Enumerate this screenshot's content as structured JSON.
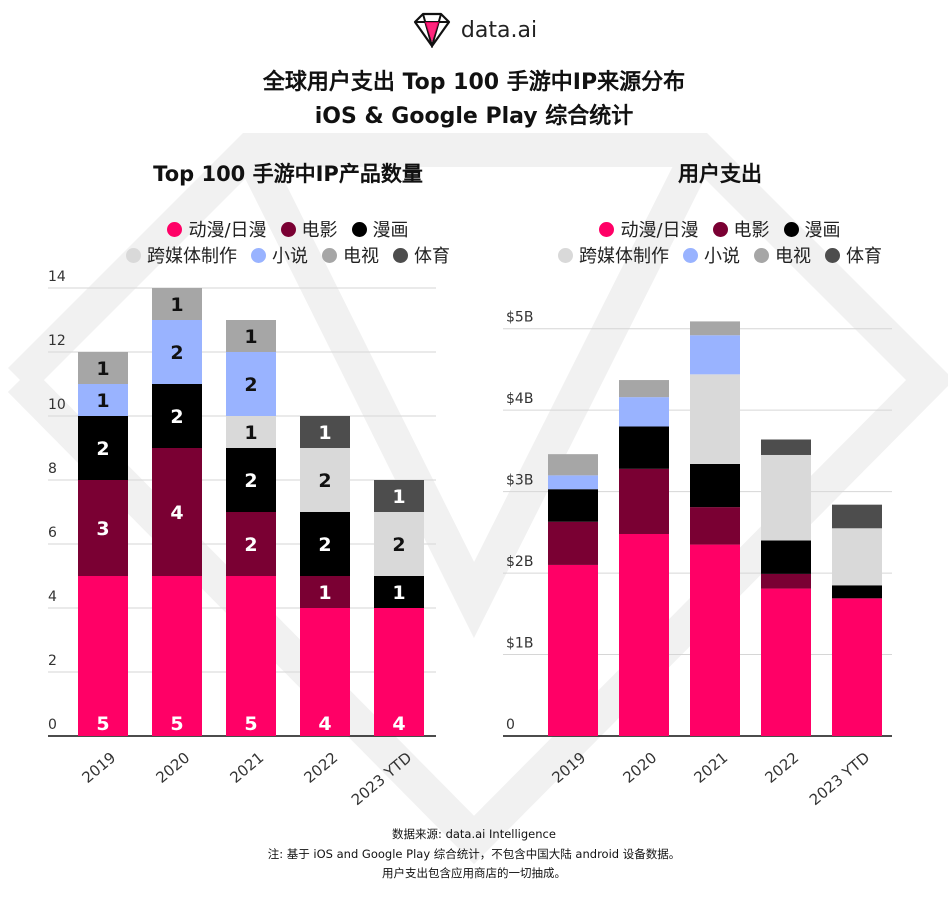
{
  "brand": {
    "name": "data.ai"
  },
  "title": {
    "line1": "全球用户支出 Top 100 手游中IP来源分布",
    "line2": "iOS & Google Play 综合统计"
  },
  "colors": {
    "anime": "#ff0066",
    "movie": "#7a0033",
    "comic": "#000000",
    "crossmedia": "#d9d9d9",
    "novel": "#99b3ff",
    "tv": "#a6a6a6",
    "sports": "#4d4d4d"
  },
  "legend": [
    {
      "label": "动漫/日漫",
      "color": "#ff0066"
    },
    {
      "label": "电影",
      "color": "#7a0033"
    },
    {
      "label": "漫画",
      "color": "#000000"
    },
    {
      "label": "跨媒体制作",
      "color": "#d9d9d9"
    },
    {
      "label": "小说",
      "color": "#99b3ff"
    },
    {
      "label": "电视",
      "color": "#a6a6a6"
    },
    {
      "label": "体育",
      "color": "#4d4d4d"
    }
  ],
  "chart_data": [
    {
      "type": "bar",
      "stacked": true,
      "title": "Top 100 手游中IP产品数量",
      "categories": [
        "2019",
        "2020",
        "2021",
        "2022",
        "2023 YTD"
      ],
      "ylim": [
        0,
        14
      ],
      "yticks": [
        "0",
        "2",
        "4",
        "6",
        "8",
        "10",
        "12",
        "14"
      ],
      "grid": true,
      "legend_position": "top",
      "series": [
        {
          "name": "动漫/日漫",
          "color": "#ff0066",
          "values": [
            5,
            5,
            5,
            4,
            4
          ],
          "labels": [
            "5",
            "5",
            "5",
            "4",
            "4"
          ]
        },
        {
          "name": "电影",
          "color": "#7a0033",
          "values": [
            3,
            4,
            2,
            1,
            0
          ],
          "labels": [
            "3",
            "4",
            "2",
            "1",
            ""
          ]
        },
        {
          "name": "漫画",
          "color": "#000000",
          "values": [
            2,
            2,
            2,
            2,
            1
          ],
          "labels": [
            "2",
            "2",
            "2",
            "2",
            "1"
          ]
        },
        {
          "name": "跨媒体制作",
          "color": "#d9d9d9",
          "values": [
            0,
            0,
            1,
            2,
            2
          ],
          "labels": [
            "",
            "",
            "1",
            "2",
            "2"
          ]
        },
        {
          "name": "小说",
          "color": "#99b3ff",
          "values": [
            1,
            2,
            2,
            0,
            0
          ],
          "labels": [
            "1",
            "2",
            "2",
            "",
            ""
          ]
        },
        {
          "name": "电视",
          "color": "#a6a6a6",
          "values": [
            1,
            1,
            1,
            0,
            0
          ],
          "labels": [
            "1",
            "1",
            "1",
            "",
            ""
          ]
        },
        {
          "name": "体育",
          "color": "#4d4d4d",
          "values": [
            0,
            0,
            0,
            1,
            1
          ],
          "labels": [
            "",
            "",
            "",
            "1",
            "1"
          ]
        }
      ]
    },
    {
      "type": "bar",
      "stacked": true,
      "title": "用户支出",
      "categories": [
        "2019",
        "2020",
        "2021",
        "2022",
        "2023 YTD"
      ],
      "ylim": [
        0,
        5.5
      ],
      "yticks": [
        "0",
        "$1B",
        "$2B",
        "$3B",
        "$4B",
        "$5B"
      ],
      "unit": "$B",
      "grid": true,
      "legend_position": "top",
      "series": [
        {
          "name": "动漫/日漫",
          "color": "#ff0066",
          "values": [
            2.1,
            2.48,
            2.35,
            1.81,
            1.69
          ]
        },
        {
          "name": "电影",
          "color": "#7a0033",
          "values": [
            0.53,
            0.8,
            0.46,
            0.18,
            0
          ]
        },
        {
          "name": "漫画",
          "color": "#000000",
          "values": [
            0.4,
            0.52,
            0.53,
            0.41,
            0.16
          ]
        },
        {
          "name": "跨媒体制作",
          "color": "#d9d9d9",
          "values": [
            0,
            0,
            1.1,
            1.05,
            0.7
          ]
        },
        {
          "name": "小说",
          "color": "#99b3ff",
          "values": [
            0.17,
            0.36,
            0.48,
            0,
            0
          ]
        },
        {
          "name": "电视",
          "color": "#a6a6a6",
          "values": [
            0.26,
            0.21,
            0.17,
            0,
            0
          ]
        },
        {
          "name": "体育",
          "color": "#4d4d4d",
          "values": [
            0,
            0,
            0,
            0.19,
            0.29
          ]
        }
      ]
    }
  ],
  "footer": {
    "line1": "数据来源: data.ai Intelligence",
    "line2": "注: 基于 iOS and Google Play 综合统计，不包含中国大陆 android 设备数据。",
    "line3": "用户支出包含应用商店的一切抽成。"
  }
}
